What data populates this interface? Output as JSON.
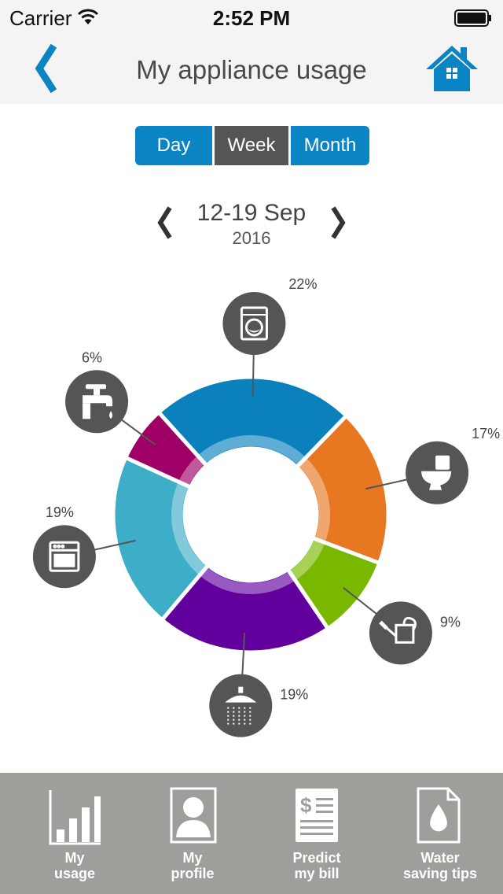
{
  "status_bar": {
    "carrier": "Carrier",
    "time": "2:52 PM",
    "icons": [
      "wifi-icon",
      "battery-icon"
    ]
  },
  "nav": {
    "title": "My appliance usage",
    "back_icon": "chevron-left-icon",
    "home_icon": "home-icon",
    "accent_color": "#0b84c3"
  },
  "segment": {
    "options": [
      "Day",
      "Week",
      "Month"
    ],
    "selected": "Week",
    "selected_color": "#555555",
    "unselected_color": "#0b84c3"
  },
  "date_nav": {
    "range": "12-19 Sep",
    "year": "2016",
    "prev_icon": "chevron-left-icon",
    "next_icon": "chevron-right-icon"
  },
  "chart_data": {
    "type": "pie",
    "donut": true,
    "unit": "%",
    "slices": [
      {
        "label": "22%",
        "value": 22,
        "color": "#0a80bd",
        "icon": "washing-machine-icon"
      },
      {
        "label": "17%",
        "value": 17,
        "color": "#e87722",
        "icon": "toilet-icon"
      },
      {
        "label": "9%",
        "value": 9,
        "color": "#7ab800",
        "icon": "watering-can-icon"
      },
      {
        "label": "19%",
        "value": 19,
        "color": "#62009e",
        "icon": "shower-icon"
      },
      {
        "label": "19%",
        "value": 19,
        "color": "#3eadc8",
        "icon": "dishwasher-icon"
      },
      {
        "label": "6%",
        "value": 6,
        "color": "#9e0066",
        "icon": "tap-icon"
      }
    ]
  },
  "tab_bar": {
    "tabs": [
      {
        "label": "My\nusage",
        "icon": "bar-chart-icon"
      },
      {
        "label": "My\nprofile",
        "icon": "profile-icon"
      },
      {
        "label": "Predict\nmy bill",
        "icon": "bill-icon"
      },
      {
        "label": "Water\nsaving tips",
        "icon": "water-drop-doc-icon"
      }
    ]
  }
}
